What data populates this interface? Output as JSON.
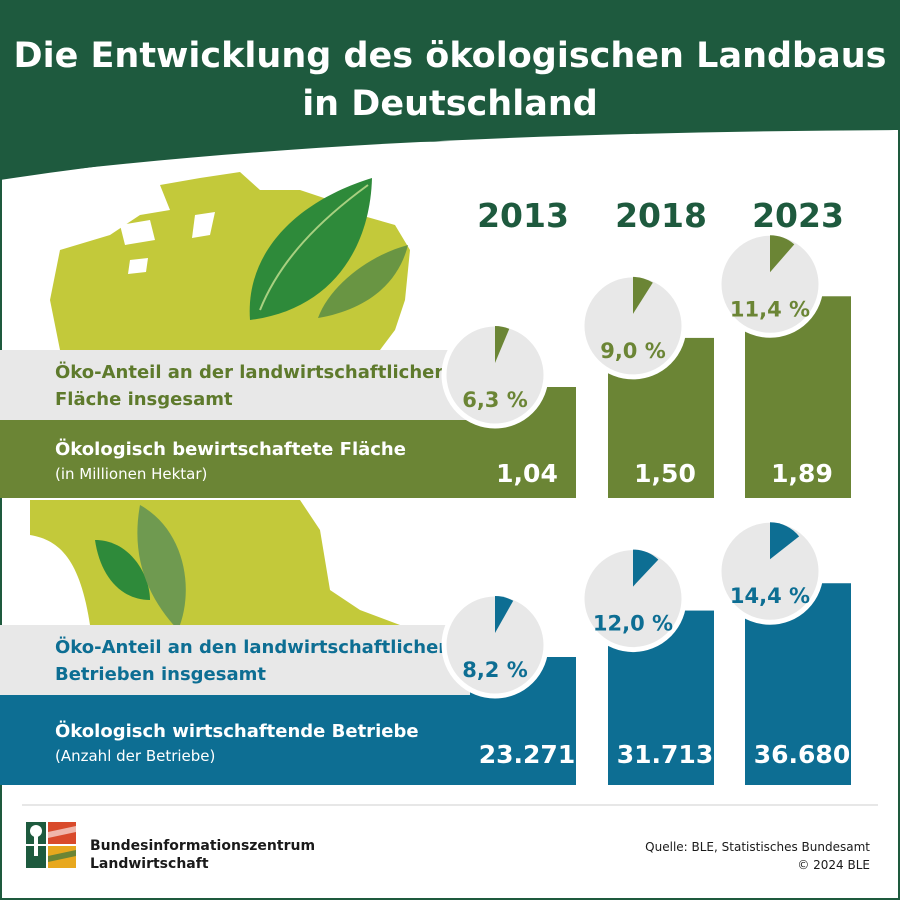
{
  "title_line1": "Die Entwicklung des ökologischen Landbaus",
  "title_line2": "in Deutschland",
  "colors": {
    "dark_green": "#1e5a3e",
    "olive": "#6b8535",
    "teal_blue": "#0d6e93",
    "lime": "#c3c93a",
    "light_grey": "#e8e8e8"
  },
  "chart_data": [
    {
      "type": "bar",
      "categories": [
        "2013",
        "2018",
        "2023"
      ],
      "band_label_line1": "Öko-Anteil an der landwirtschaftlichen",
      "band_label_line2": "Fläche insgesamt",
      "bar_label": "Ökologisch bewirtschaftete Fläche",
      "bar_sublabel": "(in Millionen Hektar)",
      "values": [
        1.04,
        1.5,
        1.89
      ],
      "value_labels": [
        "1,04",
        "1,50",
        "1,89"
      ],
      "shares_percent": [
        6.3,
        9.0,
        11.4
      ],
      "share_labels": [
        "6,3 %",
        "9,0 %",
        "11,4 %"
      ],
      "color": "#6b8535"
    },
    {
      "type": "bar",
      "categories": [
        "2013",
        "2018",
        "2023"
      ],
      "band_label_line1": "Öko-Anteil an den landwirtschaftlichen",
      "band_label_line2": "Betrieben insgesamt",
      "bar_label": "Ökologisch wirtschaftende Betriebe",
      "bar_sublabel": "(Anzahl der Betriebe)",
      "values": [
        23271,
        31713,
        36680
      ],
      "value_labels": [
        "23.271",
        "31.713",
        "36.680"
      ],
      "shares_percent": [
        8.2,
        12.0,
        14.4
      ],
      "share_labels": [
        "8,2 %",
        "12,0 %",
        "14,4 %"
      ],
      "color": "#0d6e93"
    }
  ],
  "logo_text_line1": "Bundesinformationszentrum",
  "logo_text_line2": "Landwirtschaft",
  "source_line1": "Quelle:  BLE, Statistisches Bundesamt",
  "source_line2": "© 2024 BLE"
}
